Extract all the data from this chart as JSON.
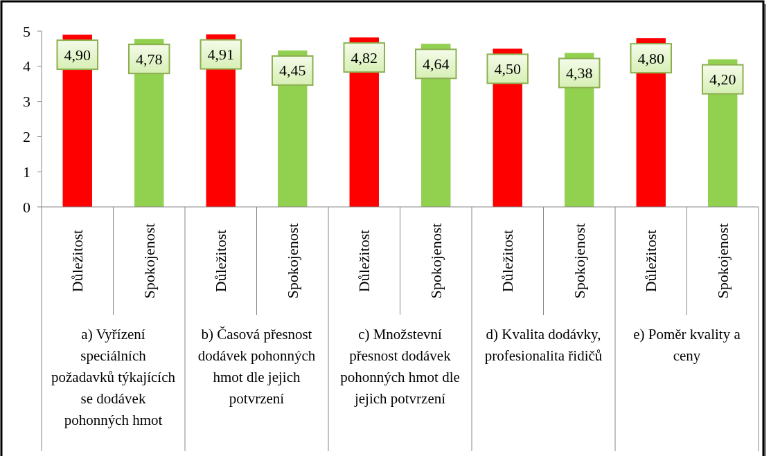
{
  "chart_data": {
    "type": "bar",
    "categories": [
      "Důležitost",
      "Spokojenost",
      "Důležitost",
      "Spokojenost",
      "Důležitost",
      "Spokojenost",
      "Důležitost",
      "Spokojenost",
      "Důležitost",
      "Spokojenost"
    ],
    "values": [
      4.9,
      4.78,
      4.91,
      4.45,
      4.82,
      4.64,
      4.5,
      4.38,
      4.8,
      4.2
    ],
    "value_labels": [
      "4,90",
      "4,78",
      "4,91",
      "4,45",
      "4,82",
      "4,64",
      "4,50",
      "4,38",
      "4,80",
      "4,20"
    ],
    "colors": [
      "#ff0000",
      "#92d050",
      "#ff0000",
      "#92d050",
      "#ff0000",
      "#92d050",
      "#ff0000",
      "#92d050",
      "#ff0000",
      "#92d050"
    ],
    "ylim": [
      0,
      5
    ],
    "yticks": [
      0,
      1,
      2,
      3,
      4,
      5
    ],
    "annotations": [
      "a) Vyřízení speciálních požadavků týkajících se dodávek pohonných hmot",
      "b) Časová přesnost dodávek pohonných hmot dle jejich potvrzení",
      "c) Množstevní přesnost dodávek pohonných hmot dle jejich potvrzení",
      "d) Kvalita dodávky, profesionalita řidičů",
      "e) Poměr kvality a ceny"
    ],
    "grid": false
  }
}
